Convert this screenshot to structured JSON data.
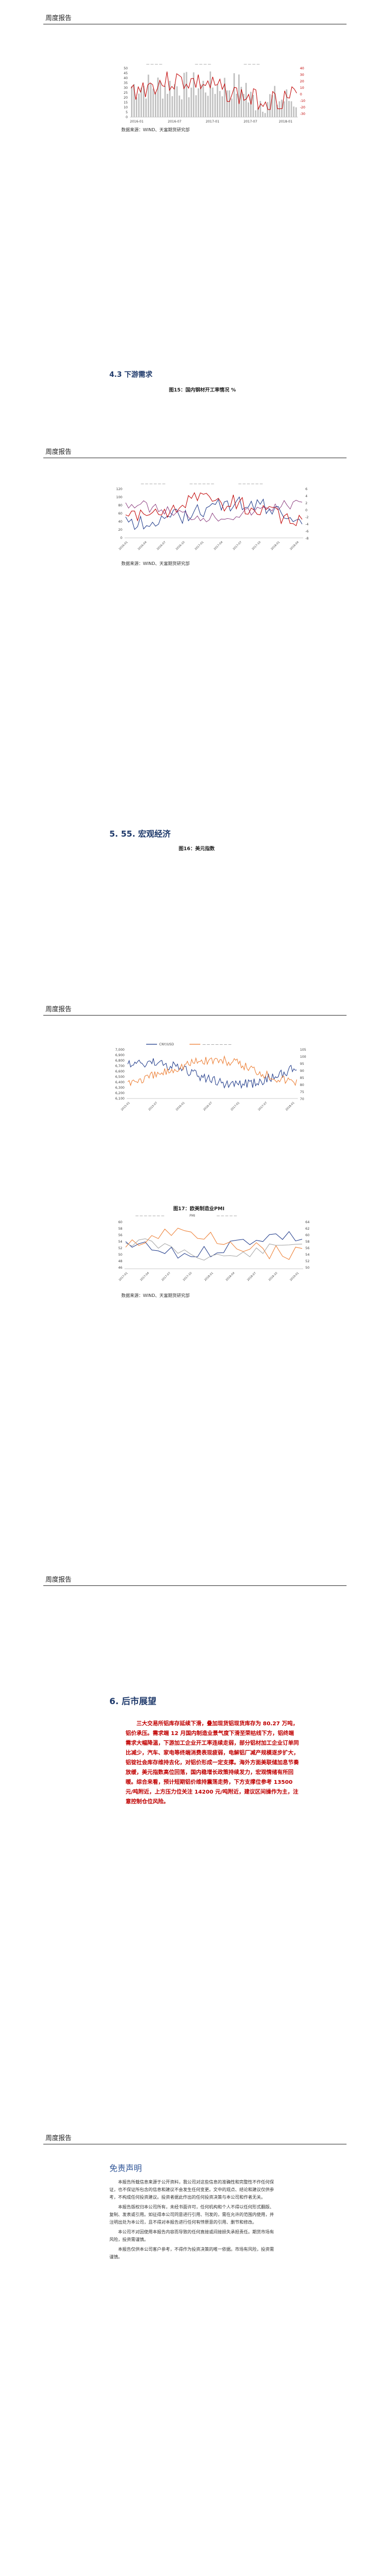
{
  "header": {
    "label": "周度报告"
  },
  "chart1": {
    "left_ticks": [
      "50",
      "45",
      "40",
      "35",
      "30",
      "25",
      "20",
      "15",
      "10",
      "5",
      "0"
    ],
    "right_ticks": [
      "40",
      "30",
      "20",
      "10",
      "0",
      "-10",
      "-20",
      "-30"
    ],
    "x_ticks": [
      "2016-01",
      "2016-07",
      "2017-01",
      "2017-07",
      "2018-01"
    ],
    "legend_items": [
      "— — — —",
      "— — — —",
      "— — — —"
    ],
    "source": "数据来源：WIND、天富期货研究部"
  },
  "section_4_3": {
    "title": "4.3 下游需求"
  },
  "figure_15": {
    "title": "图15：国内钢材开工率情况 %"
  },
  "chart2": {
    "left_ticks": [
      "120",
      "100",
      "80",
      "60",
      "40",
      "20",
      "0"
    ],
    "right_ticks": [
      "6",
      "4",
      "2",
      "0",
      "-2",
      "-4",
      "-6",
      "-8"
    ],
    "x_ticks": [
      "2016-01",
      "2016-04",
      "2016-07",
      "2016-10",
      "2017-01",
      "2017-04",
      "2017-07",
      "2017-10",
      "2018-01",
      "2018-04"
    ],
    "legend_items": [
      "— — — — — —",
      "— — — — — —",
      "— — — — — —"
    ],
    "source": "数据来源：WIND、天富期货研究部"
  },
  "section_5": {
    "title": "5.  55. 宏观经济"
  },
  "figure_16": {
    "title": "图16：美元指数"
  },
  "chart3": {
    "left_ticks": [
      "7,000",
      "6,900",
      "6,800",
      "6,700",
      "6,600",
      "6,500",
      "6,400",
      "6,300",
      "6,200",
      "6,100"
    ],
    "right_ticks": [
      "105",
      "100",
      "95",
      "90",
      "85",
      "80",
      "75",
      "70"
    ],
    "x_ticks": [
      "2015-01",
      "2015-07",
      "2016-01",
      "2016-07",
      "2017-01",
      "2017-07",
      "2018-01"
    ],
    "legend_items": [
      "CNY/USD",
      "— — — — — — —"
    ],
    "source": "数据来源：WIND、天富期货研究部"
  },
  "figure_17": {
    "title": "图17：欧美制造业PMI"
  },
  "chart4": {
    "left_ticks": [
      "60",
      "58",
      "56",
      "54",
      "52",
      "50",
      "48",
      "46"
    ],
    "right_ticks": [
      "64",
      "62",
      "60",
      "58",
      "56",
      "54",
      "52",
      "50"
    ],
    "x_ticks": [
      "2017-01",
      "2017-04",
      "2017-07",
      "2017-10",
      "2018-01",
      "2018-04",
      "2018-07",
      "2018-10",
      "2019-01"
    ],
    "legend_items": [
      "— — — — — — —",
      "PMI",
      "— — — — —"
    ],
    "source": "数据来源：WIND、天富期货研究部"
  },
  "section_6": {
    "title": "6.  后市展望"
  },
  "outlook": {
    "paragraph": "三大交易所铝库存延续下滑，叠加现货铝现货库存为 80.27 万吨，铝价承压。需求端 12 月国内制造业景气度下滑至荣枯线下方，铝终端需求大幅降温，下游加工企业开工率连续走弱，部分铝材加工企业订单同比减少，汽车、家电等终端消费表现疲弱，电解铝厂减产规模逐步扩大，铝锭社会库存维持去化，对铝价形成一定支撑。海外方面美联储加息节奏放缓，美元指数高位回落，国内稳增长政策持续发力，宏观情绪有所回暖。综合来看，预计短期铝价维持震荡走势，下方支撑位参考 13500 元/吨附近，上方压力位关注 14200 元/吨附近，建议区间操作为主，注意控制仓位风险。"
  },
  "disclaimer": {
    "title": "免责声明",
    "paragraphs": [
      "本报告所载信息来源于公开资料，我公司对这些信息的准确性和完整性不作任何保证，也不保证所包含的信息和建议不会发生任何变更。文中的观点、结论和建议仅供参考，不构成任何投资建议。投资者据此作出的任何投资决策与本公司和作者无关。",
      "本报告版权归本公司所有，未经书面许可，任何机构和个人不得以任何形式翻版、复制、发表或引用。如征得本公司同意进行引用、刊发的，需在允许的范围内使用，并注明出处为本公司，且不得对本报告进行任何有悖原意的引用、删节和修改。",
      "本公司不对因使用本报告内容而导致的任何直接或间接损失承担责任。期货市场有风险，投资需谨慎。",
      "本报告仅供本公司客户参考，不得作为投资决策的唯一依据。市场有风险，投资需谨慎。"
    ]
  }
}
